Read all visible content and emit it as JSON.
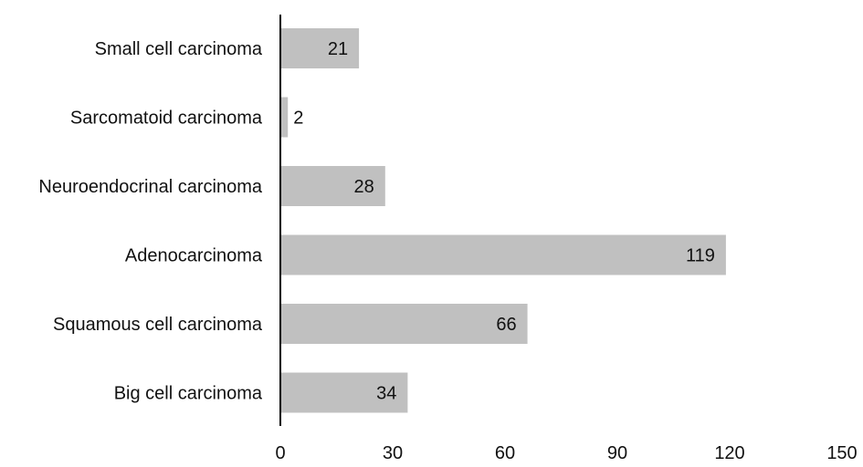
{
  "chart_data": {
    "type": "bar",
    "orientation": "horizontal",
    "categories": [
      "Small cell carcinoma",
      "Sarcomatoid carcinoma",
      "Neuroendocrinal carcinoma",
      "Adenocarcinoma",
      "Squamous cell carcinoma",
      "Big cell carcinoma"
    ],
    "values": [
      21,
      2,
      28,
      119,
      66,
      34
    ],
    "xlim": [
      0,
      150
    ],
    "xticks": [
      "0",
      "30",
      "60",
      "90",
      "120",
      "150"
    ],
    "data_labels": [
      "21",
      "2",
      "28",
      "119",
      "66",
      "34"
    ],
    "title": "",
    "xlabel": "",
    "ylabel": "",
    "grid": false,
    "bar_color": "#c0c0c0",
    "axis_color": "#000000"
  }
}
